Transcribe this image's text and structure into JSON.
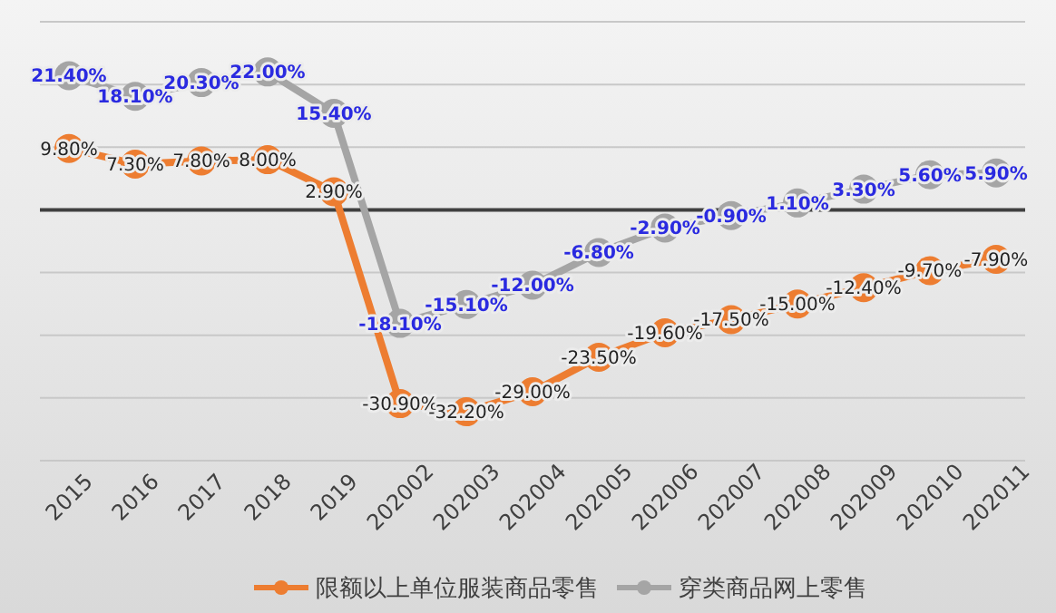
{
  "chart_data": {
    "type": "line",
    "categories": [
      "2015",
      "2016",
      "2017",
      "2018",
      "2019",
      "202002",
      "202003",
      "202004",
      "202005",
      "202006",
      "202007",
      "202008",
      "202009",
      "202010",
      "202011"
    ],
    "series": [
      {
        "name": "限额以上单位服装商品零售",
        "color": "#ed7d31",
        "values": [
          9.8,
          7.3,
          7.8,
          8.0,
          2.9,
          -30.9,
          -32.2,
          -29.0,
          -23.5,
          -19.6,
          -17.5,
          -15.0,
          -12.4,
          -9.7,
          -7.9
        ],
        "value_labels": [
          "9.80%",
          "7.30%",
          "7.80%",
          "8.00%",
          "2.90%",
          "-30.90%",
          "-32.20%",
          "-29.00%",
          "-23.50%",
          "-19.60%",
          "-17.50%",
          "-15.00%",
          "-12.40%",
          "-9.70%",
          "-7.90%"
        ]
      },
      {
        "name": "穿类商品网上零售",
        "color": "#a5a5a5",
        "values": [
          21.4,
          18.1,
          20.3,
          22.0,
          15.4,
          -18.1,
          -15.1,
          -12.0,
          -6.8,
          -2.9,
          -0.9,
          1.1,
          3.3,
          5.6,
          5.9
        ],
        "value_labels": [
          "21.40%",
          "18.10%",
          "20.30%",
          "22.00%",
          "15.40%",
          "-18.10%",
          "-15.10%",
          "-12.00%",
          "-6.80%",
          "-2.90%",
          "-0.90%",
          "1.10%",
          "3.30%",
          "5.60%",
          "5.90%"
        ]
      }
    ],
    "ylim": [
      -40,
      30
    ],
    "yticks": [
      {
        "value": -40,
        "label": null
      },
      {
        "value": -30,
        "label": null
      },
      {
        "value": -20,
        "label": null
      },
      {
        "value": -10,
        "label": null
      },
      {
        "value": 0,
        "label": null
      },
      {
        "value": 10,
        "label": null
      },
      {
        "value": 20,
        "label": null
      },
      {
        "value": 30,
        "label": null
      }
    ],
    "tick_labels": "x",
    "grid": "y",
    "legend": "bottom",
    "marker": "circle",
    "line_style": "solid"
  }
}
